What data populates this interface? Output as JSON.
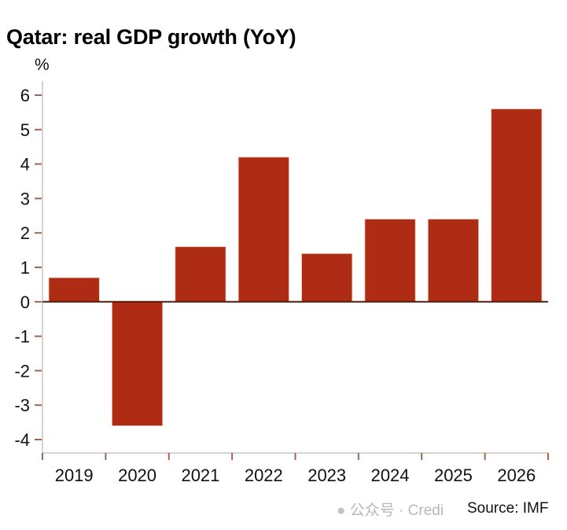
{
  "chart_data": {
    "type": "bar",
    "title": "Qatar: real GDP growth (YoY)",
    "ylabel": "%",
    "xlabel": "",
    "categories": [
      "2019",
      "2020",
      "2021",
      "2022",
      "2023",
      "2024",
      "2025",
      "2026"
    ],
    "values": [
      0.7,
      -3.6,
      1.6,
      4.2,
      1.4,
      2.4,
      2.4,
      5.6
    ],
    "ylim": [
      -4,
      6
    ],
    "yticks": [
      6,
      5,
      4,
      3,
      2,
      1,
      0,
      -1,
      -2,
      -3,
      -4
    ],
    "grid": false,
    "legend": "none",
    "bar_color": "#ad2c13",
    "source": "Source: IMF"
  },
  "watermark": "公众号 · Credi"
}
